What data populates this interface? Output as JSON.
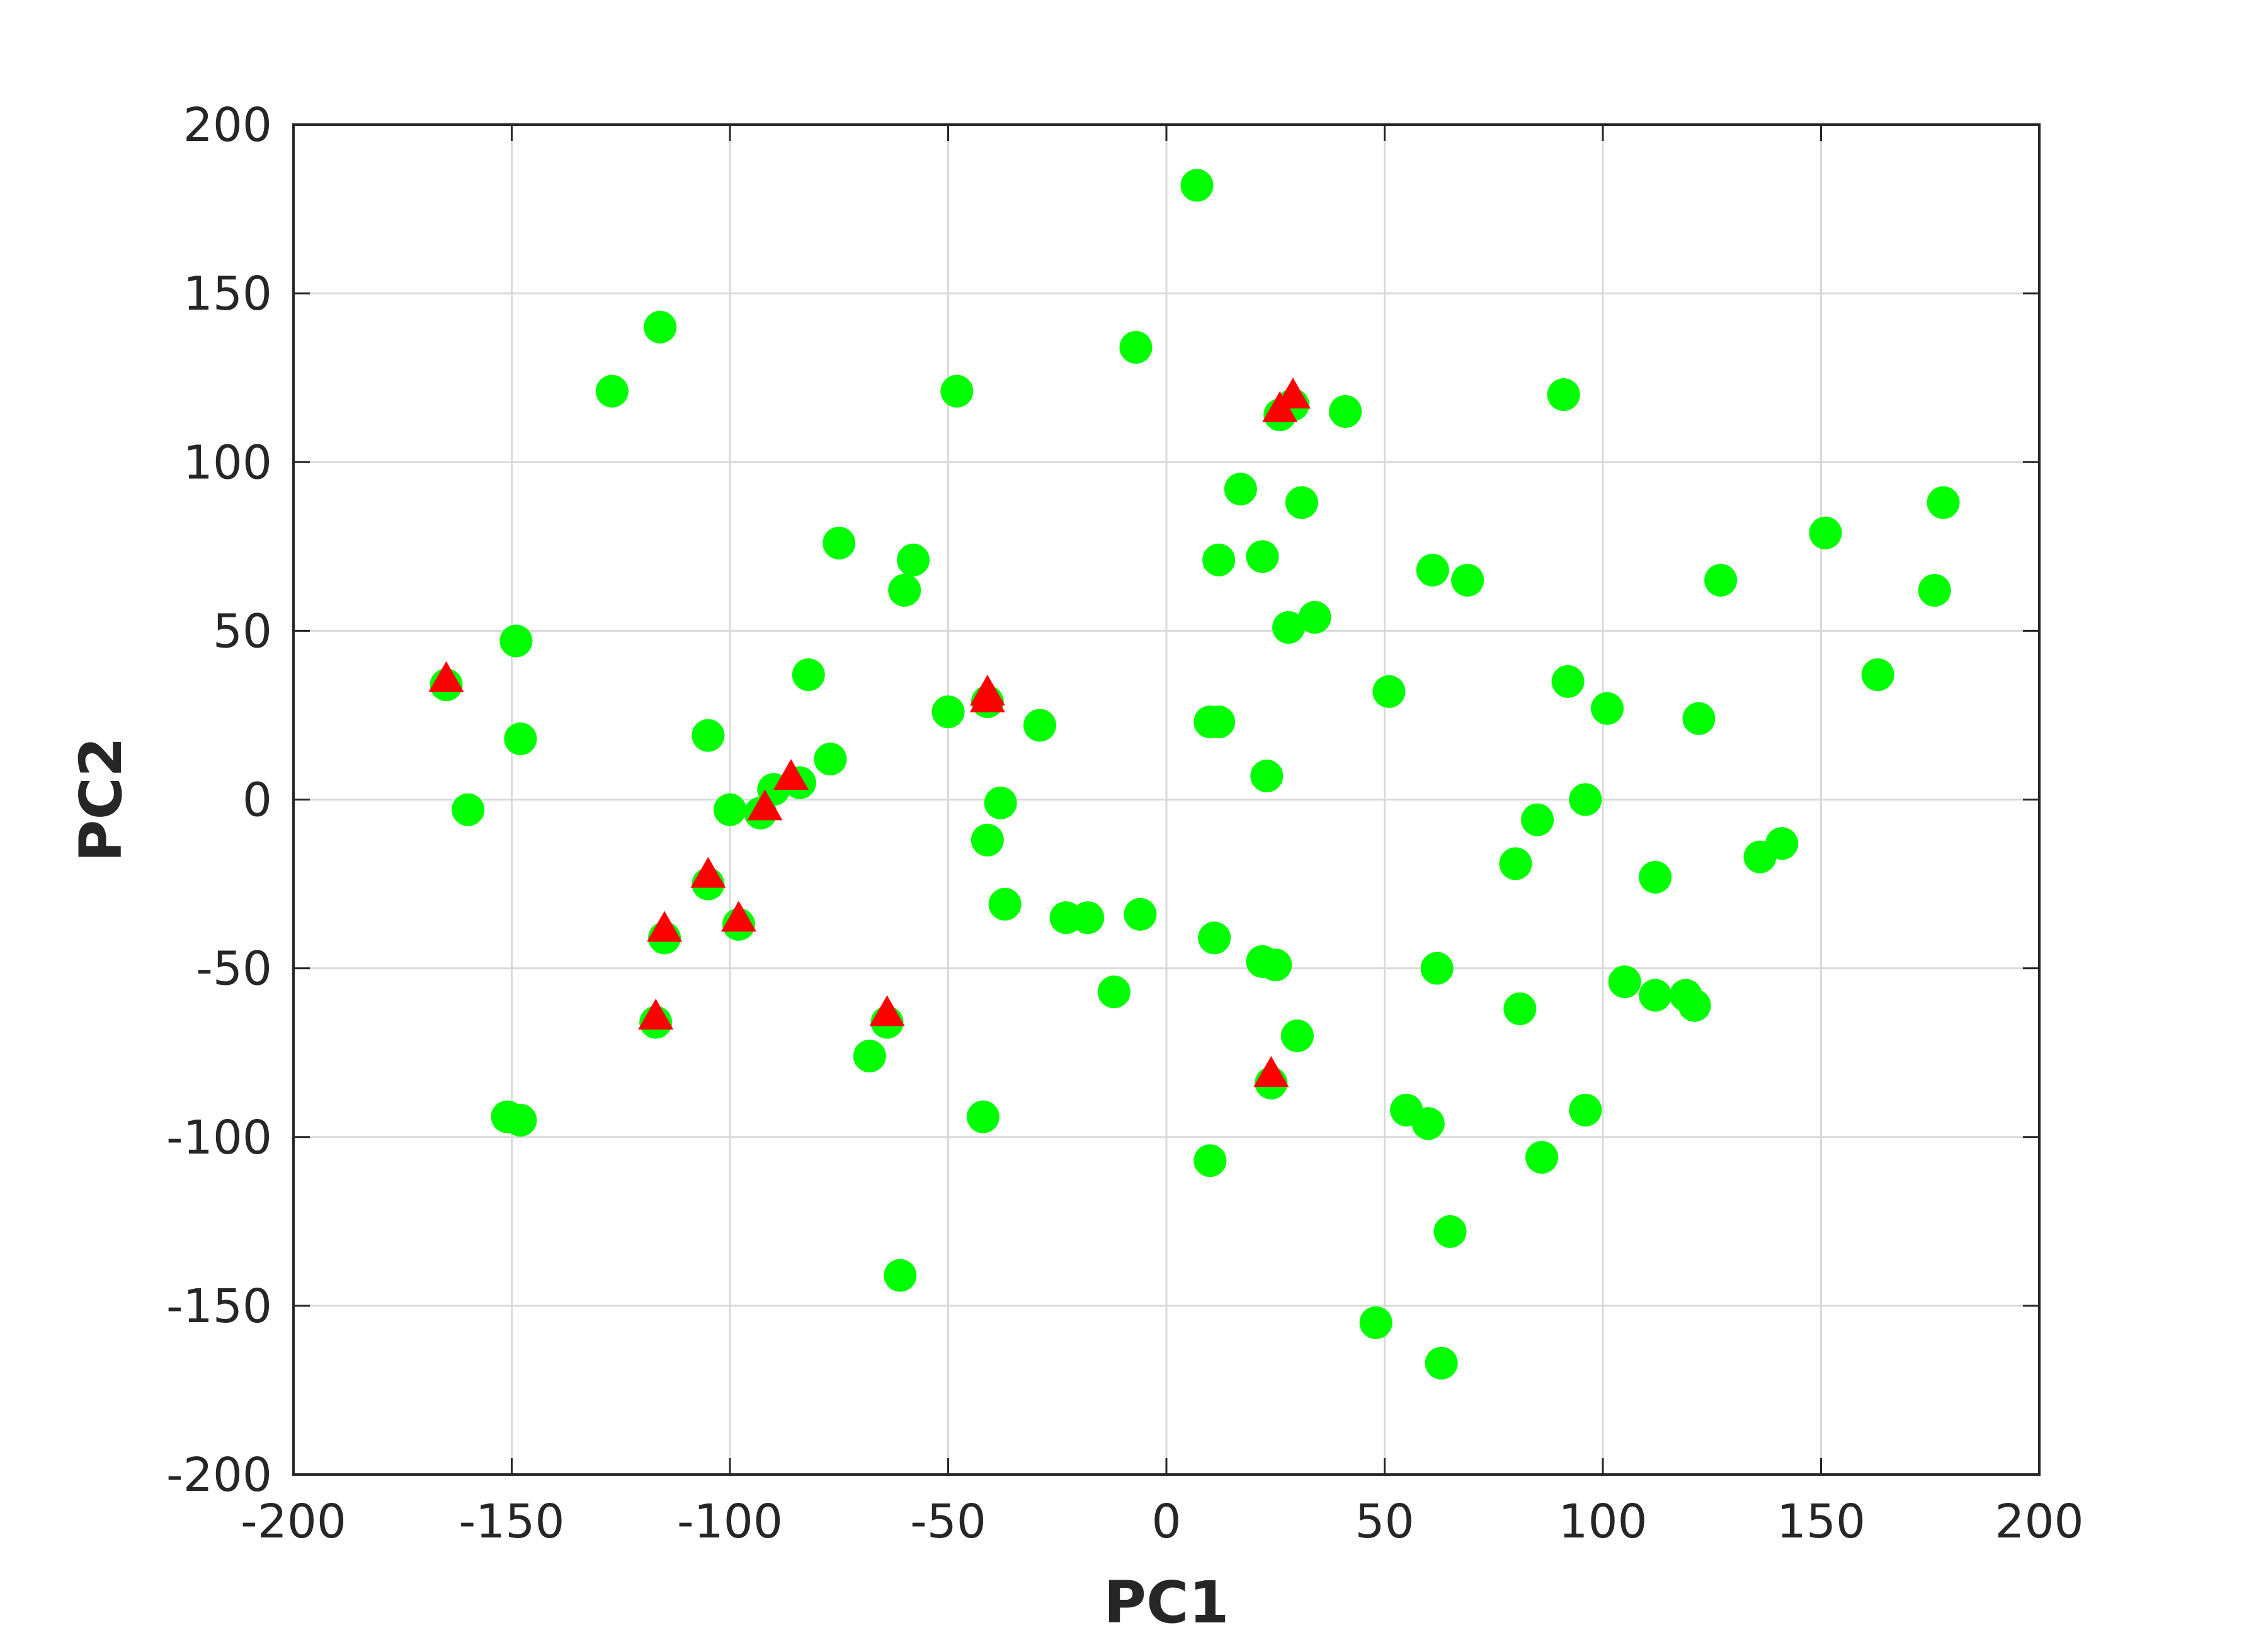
{
  "chart_data": {
    "type": "scatter",
    "title": "",
    "xlabel": "PC1",
    "ylabel": "PC2",
    "xlim": [
      -200,
      200
    ],
    "ylim": [
      -200,
      200
    ],
    "x_ticks": [
      -200,
      -150,
      -100,
      -50,
      0,
      50,
      100,
      150,
      200
    ],
    "y_ticks": [
      -200,
      -150,
      -100,
      -50,
      0,
      50,
      100,
      150,
      200
    ],
    "x_tick_labels": [
      "-200",
      "-150",
      "-100",
      "-50",
      "0",
      "50",
      "100",
      "150",
      "200"
    ],
    "y_tick_labels": [
      "-200",
      "-150",
      "-100",
      "-50",
      "0",
      "50",
      "100",
      "150",
      "200"
    ],
    "grid": true,
    "box": true,
    "series": [
      {
        "marker": "circle",
        "color": "#00ff00",
        "points": [
          [
            7,
            182
          ],
          [
            -116,
            140
          ],
          [
            -127,
            121
          ],
          [
            -48,
            121
          ],
          [
            -7,
            134
          ],
          [
            29,
            117
          ],
          [
            26,
            114
          ],
          [
            41,
            115
          ],
          [
            91,
            120
          ],
          [
            17,
            92
          ],
          [
            31,
            88
          ],
          [
            12,
            71
          ],
          [
            22,
            72
          ],
          [
            -75,
            76
          ],
          [
            -58,
            71
          ],
          [
            -60,
            62
          ],
          [
            61,
            68
          ],
          [
            69,
            65
          ],
          [
            151,
            79
          ],
          [
            178,
            88
          ],
          [
            127,
            65
          ],
          [
            176,
            62
          ],
          [
            28,
            51
          ],
          [
            34,
            54
          ],
          [
            -149,
            47
          ],
          [
            -148,
            18
          ],
          [
            -82,
            37
          ],
          [
            -165,
            34
          ],
          [
            -50,
            26
          ],
          [
            -41,
            29
          ],
          [
            -29,
            22
          ],
          [
            10,
            23
          ],
          [
            12,
            23
          ],
          [
            51,
            32
          ],
          [
            92,
            35
          ],
          [
            101,
            27
          ],
          [
            122,
            24
          ],
          [
            163,
            37
          ],
          [
            -105,
            19
          ],
          [
            -77,
            12
          ],
          [
            23,
            7
          ],
          [
            -100,
            -3
          ],
          [
            -90,
            3
          ],
          [
            -84,
            5
          ],
          [
            -93,
            -4
          ],
          [
            -160,
            -3
          ],
          [
            -38,
            -1
          ],
          [
            -41,
            -12
          ],
          [
            96,
            0
          ],
          [
            85,
            -6
          ],
          [
            80,
            -19
          ],
          [
            112,
            -23
          ],
          [
            136,
            -17
          ],
          [
            141,
            -13
          ],
          [
            -105,
            -25
          ],
          [
            -98,
            -37
          ],
          [
            -115,
            -41
          ],
          [
            -37,
            -31
          ],
          [
            -23,
            -35
          ],
          [
            -18,
            -35
          ],
          [
            -6,
            -34
          ],
          [
            11,
            -41
          ],
          [
            22,
            -48
          ],
          [
            25,
            -49
          ],
          [
            62,
            -50
          ],
          [
            105,
            -54
          ],
          [
            112,
            -58
          ],
          [
            119,
            -58
          ],
          [
            121,
            -61
          ],
          [
            -12,
            -57
          ],
          [
            81,
            -62
          ],
          [
            -117,
            -66
          ],
          [
            -64,
            -66
          ],
          [
            -68,
            -76
          ],
          [
            30,
            -70
          ],
          [
            24,
            -84
          ],
          [
            -42,
            -94
          ],
          [
            -151,
            -94
          ],
          [
            -148,
            -95
          ],
          [
            10,
            -107
          ],
          [
            55,
            -92
          ],
          [
            60,
            -96
          ],
          [
            86,
            -106
          ],
          [
            96,
            -92
          ],
          [
            65,
            -128
          ],
          [
            -61,
            -141
          ],
          [
            48,
            -155
          ],
          [
            63,
            -167
          ]
        ]
      },
      {
        "marker": "triangle",
        "color": "#ff0000",
        "points": [
          [
            29,
            119
          ],
          [
            26,
            115
          ],
          [
            -165,
            35
          ],
          [
            -41,
            31
          ],
          [
            -41,
            29
          ],
          [
            -86,
            6
          ],
          [
            -92,
            -3
          ],
          [
            -105,
            -23
          ],
          [
            -98,
            -36
          ],
          [
            -115,
            -39
          ],
          [
            -64,
            -64
          ],
          [
            -117,
            -65
          ],
          [
            24,
            -82
          ]
        ]
      }
    ]
  }
}
